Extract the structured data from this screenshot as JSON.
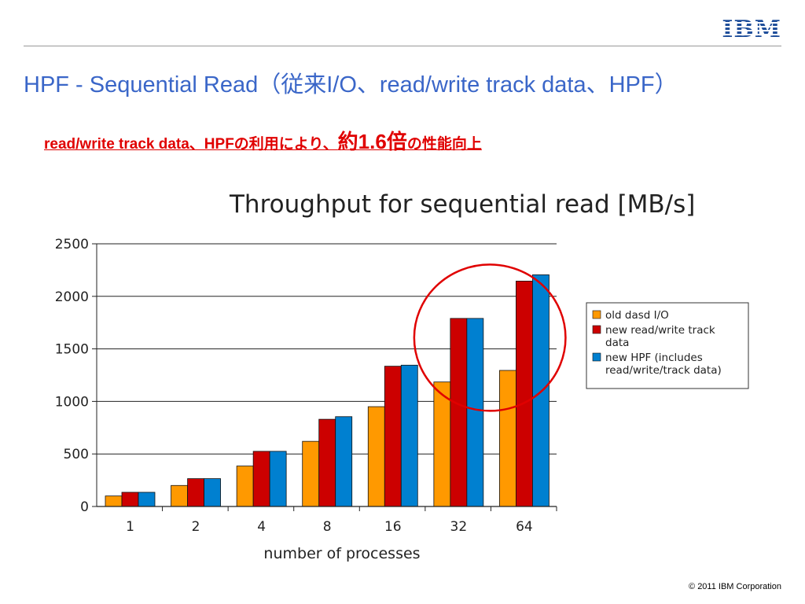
{
  "header": {
    "logo": "IBM",
    "title": "HPF - Sequential Read（従来I/O、read/write track data、HPF）"
  },
  "subtitle": {
    "part1": "read/write track data、HPFの利用により、",
    "highlight": "約1.6倍",
    "part2": "の性能向上"
  },
  "chart_data": {
    "type": "bar",
    "title": "Throughput for sequential read [MB/s]",
    "xlabel": "number of processes",
    "ylabel": "",
    "categories": [
      "1",
      "2",
      "4",
      "8",
      "16",
      "32",
      "64"
    ],
    "series": [
      {
        "name": "old dasd I/O",
        "color": "#ff9900",
        "values": [
          100,
          200,
          385,
          620,
          950,
          1185,
          1295
        ]
      },
      {
        "name": "new read/write track data",
        "color": "#cc0000",
        "values": [
          135,
          265,
          525,
          830,
          1335,
          1790,
          2145
        ]
      },
      {
        "name": "new HPF (includes read/write/track data)",
        "color": "#0080d0",
        "values": [
          135,
          265,
          525,
          855,
          1345,
          1790,
          2205
        ]
      }
    ],
    "ylim": [
      0,
      2500
    ],
    "yticks": [
      0,
      500,
      1000,
      1500,
      2000,
      2500
    ],
    "grid": true,
    "legend_position": "right",
    "highlight_categories": [
      "32",
      "64"
    ],
    "highlight_color": "#e00000"
  },
  "footer": {
    "copyright": "© 2011 IBM Corporation"
  }
}
